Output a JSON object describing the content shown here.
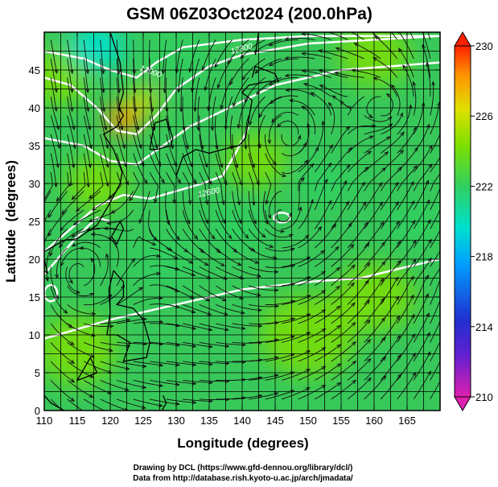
{
  "chart_data": {
    "type": "heatmap",
    "title": "GSM 06Z03Oct2024 (200.0hPa)",
    "xlabel": "Longitude (degrees)",
    "ylabel": "Latitude  (degrees)",
    "xlim": [
      110,
      170
    ],
    "ylim": [
      0,
      50
    ],
    "x_ticks": [
      "110",
      "115",
      "120",
      "125",
      "130",
      "135",
      "140",
      "145",
      "150",
      "155",
      "160",
      "165"
    ],
    "y_ticks": [
      "0",
      "5",
      "10",
      "15",
      "20",
      "25",
      "30",
      "35",
      "40",
      "45"
    ],
    "grid": true,
    "colorbar": {
      "position": "right",
      "min": 210,
      "max": 230,
      "tick_labels": [
        "210",
        "214",
        "218",
        "222",
        "226",
        "230"
      ],
      "colors": [
        "#e020b0",
        "#2030d0",
        "#00a0ff",
        "#00e0d0",
        "#30d060",
        "#80e000",
        "#e0e000",
        "#ff9000",
        "#ff2000"
      ]
    },
    "contour_labels": [
      "12000",
      "12300",
      "12600",
      "12600"
    ],
    "features": [
      {
        "name": "warm core",
        "x": 122,
        "y": 38.5,
        "value": 227
      },
      {
        "name": "cool area",
        "x": 153,
        "y": 30,
        "value": 219
      },
      {
        "name": "cool area",
        "x": 166,
        "y": 25,
        "value": 219
      },
      {
        "name": "cool area",
        "x": 118,
        "y": 48,
        "value": 217
      },
      {
        "name": "cool area",
        "x": 139,
        "y": 24,
        "value": 220
      },
      {
        "name": "vortex",
        "x": 146,
        "y": 25.5
      },
      {
        "name": "vortex",
        "x": 147,
        "y": 36.5
      },
      {
        "name": "vortex",
        "x": 162,
        "y": 40
      },
      {
        "name": "vortex",
        "x": 115,
        "y": 18
      }
    ],
    "streamlines": true,
    "coastlines": true
  },
  "credits": {
    "line1": "Drawing by DCL (https://www.gfd-dennou.org/library/dcl/)",
    "line2": "Data from http://database.rish.kyoto-u.ac.jp/arch/jmadata/"
  }
}
